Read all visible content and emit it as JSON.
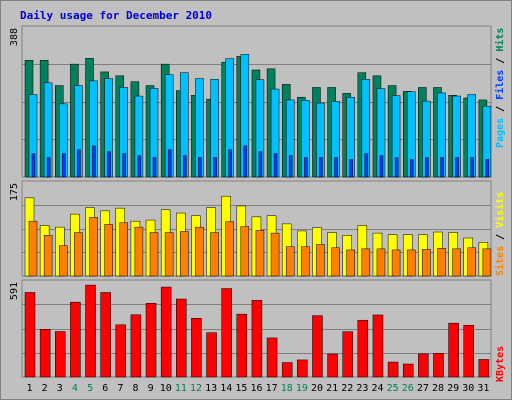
{
  "title": "Daily usage for December 2010",
  "colors": {
    "background": "#c0c0c0",
    "hits": "#00805c",
    "files": "#00c0ff",
    "pages": "#0040ff",
    "visits": "#ffff00",
    "sites": "#ff8000",
    "kbytes": "#ff0000",
    "weekday_label": "#000000",
    "weekend_label": "#00805c"
  },
  "side_labels": {
    "pages": "Pages",
    "files": "Files",
    "hits": "Hits",
    "visits": "Visits",
    "sites": "Sites",
    "kbytes": "KBytes",
    "sep": " / "
  },
  "chart_data": {
    "type": "bar",
    "title": "Daily usage for December 2010",
    "x": [
      "1",
      "2",
      "3",
      "4",
      "5",
      "6",
      "7",
      "8",
      "9",
      "10",
      "11",
      "12",
      "13",
      "14",
      "15",
      "16",
      "17",
      "18",
      "19",
      "20",
      "21",
      "22",
      "23",
      "24",
      "25",
      "26",
      "27",
      "28",
      "29",
      "30",
      "31"
    ],
    "weekend_days": [
      "4",
      "5",
      "11",
      "12",
      "18",
      "19",
      "25",
      "26"
    ],
    "panels": [
      {
        "id": "hits",
        "ymax": 388,
        "ymax_label": "388",
        "series": [
          {
            "name": "Hits",
            "values": [
              300,
              300,
              235,
              290,
              305,
              270,
              260,
              245,
              235,
              290,
              222,
              210,
              200,
              295,
              310,
              275,
              278,
              238,
              205,
              230,
              230,
              215,
              268,
              260,
              235,
              220,
              230,
              230,
              210,
              203,
              198
            ]
          },
          {
            "name": "Files",
            "values": [
              212,
              242,
              188,
              235,
              247,
              253,
              230,
              208,
              228,
              263,
              268,
              253,
              251,
              304,
              315,
              250,
              226,
              198,
              197,
              190,
              194,
              205,
              251,
              227,
              209,
              219,
              195,
              216,
              208,
              212,
              182
            ]
          },
          {
            "name": "Pages",
            "values": [
              60,
              50,
              60,
              70,
              80,
              65,
              60,
              55,
              50,
              70,
              55,
              50,
              50,
              70,
              80,
              65,
              60,
              55,
              50,
              50,
              50,
              45,
              60,
              55,
              50,
              45,
              50,
              50,
              50,
              50,
              45
            ]
          }
        ]
      },
      {
        "id": "visits",
        "ymax": 175,
        "ymax_label": "175",
        "series": [
          {
            "name": "Visits",
            "values": [
              144,
              93,
              90,
              114,
              126,
              120,
              125,
              101,
              103,
              122,
              116,
              111,
              126,
              147,
              129,
              109,
              111,
              96,
              83,
              89,
              80,
              75,
              93,
              79,
              76,
              76,
              76,
              81,
              80,
              70,
              62
            ]
          },
          {
            "name": "Sites",
            "values": [
              101,
              75,
              56,
              80,
              108,
              95,
              98,
              90,
              80,
              80,
              82,
              90,
              80,
              100,
              91,
              84,
              79,
              54,
              54,
              58,
              52,
              48,
              50,
              50,
              48,
              48,
              49,
              51,
              50,
              52,
              50
            ]
          }
        ]
      },
      {
        "id": "kbytes",
        "ymax": 591,
        "ymax_label": "591",
        "series": [
          {
            "name": "KBytes",
            "values": [
              515,
              291,
              277,
              456,
              560,
              515,
              318,
              379,
              449,
              548,
              475,
              358,
              270,
              539,
              383,
              467,
              238,
              88,
              104,
              374,
              140,
              276,
              346,
              378,
              91,
              79,
              141,
              144,
              328,
              315,
              107
            ]
          }
        ]
      }
    ]
  }
}
